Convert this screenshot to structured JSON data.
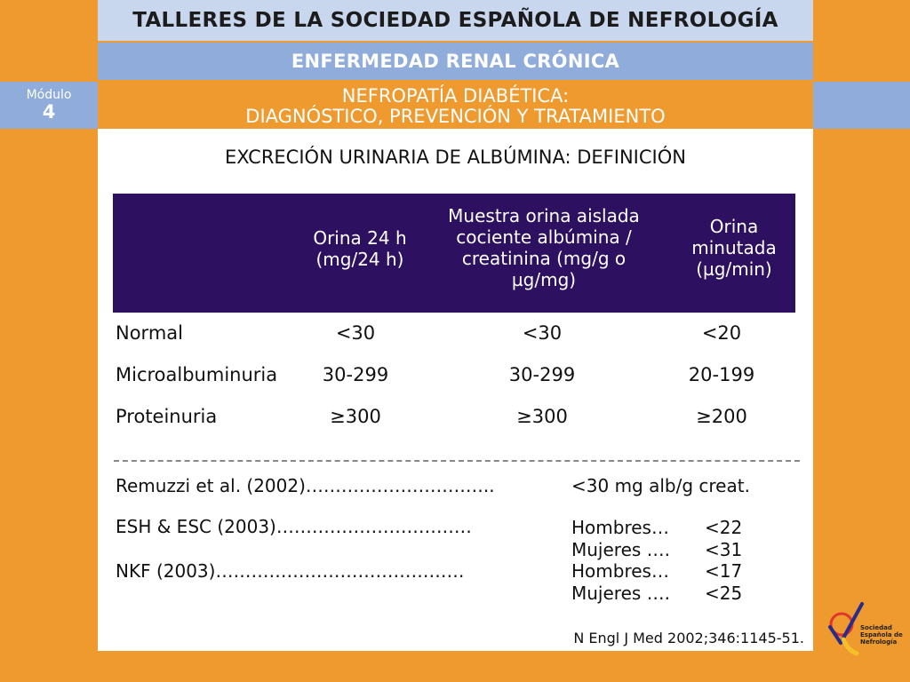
{
  "header": {
    "society_title": "TALLERES DE LA SOCIEDAD ESPAÑOLA DE NEFROLOGÍA",
    "course_title": "ENFERMEDAD RENAL CRÓNICA",
    "module_label": "Módulo",
    "module_number": "4",
    "topic_line1": "NEFROPATÍA DIABÉTICA:",
    "topic_line2": "DIAGNÓSTICO, PREVENCIÓN  Y TRATAMIENTO"
  },
  "slide": {
    "heading": "EXCRECIÓN URINARIA DE ALBÚMINA: DEFINICIÓN",
    "table": {
      "columns": [
        {
          "lines": [
            "Orina 24 h",
            "(mg/24 h)"
          ]
        },
        {
          "lines": [
            "Muestra orina aislada",
            "cociente albúmina /",
            "creatinina (mg/g  o",
            "µg/mg)"
          ]
        },
        {
          "lines": [
            "Orina",
            "minutada",
            "(µg/min)"
          ]
        }
      ],
      "rows": [
        {
          "label": "Normal",
          "values": [
            "<30",
            "<30",
            "<20"
          ]
        },
        {
          "label": "Microalbuminuria",
          "values": [
            "30-299",
            "30-299",
            "20-199"
          ]
        },
        {
          "label": "Proteinuria",
          "values": [
            "≥300",
            "≥300",
            "≥200"
          ]
        }
      ]
    },
    "references": [
      {
        "source": "Remuzzi et al. (2002)…………………………..",
        "criteria": "<30 mg alb/g creat."
      },
      {
        "source": "ESH & ESC (2003)……………………………",
        "men_label": "Hombres…",
        "men_value": "<22",
        "women_label": "Mujeres ….",
        "women_value": "<31"
      },
      {
        "source": "NKF (2003)……………………………………",
        "men_label": "Hombres…",
        "men_value": "<17",
        "women_label": "Mujeres ….",
        "women_value": "<25"
      }
    ],
    "citation": "N Engl J Med 2002;346:1145-51."
  },
  "logo": {
    "line1": "Sociedad",
    "line2": "Española de",
    "line3": "Nefrología"
  },
  "colors": {
    "background": "#ee9a2e",
    "light_blue": "#c9d7ee",
    "mid_blue": "#8facdb",
    "table_header": "#2e1060"
  }
}
